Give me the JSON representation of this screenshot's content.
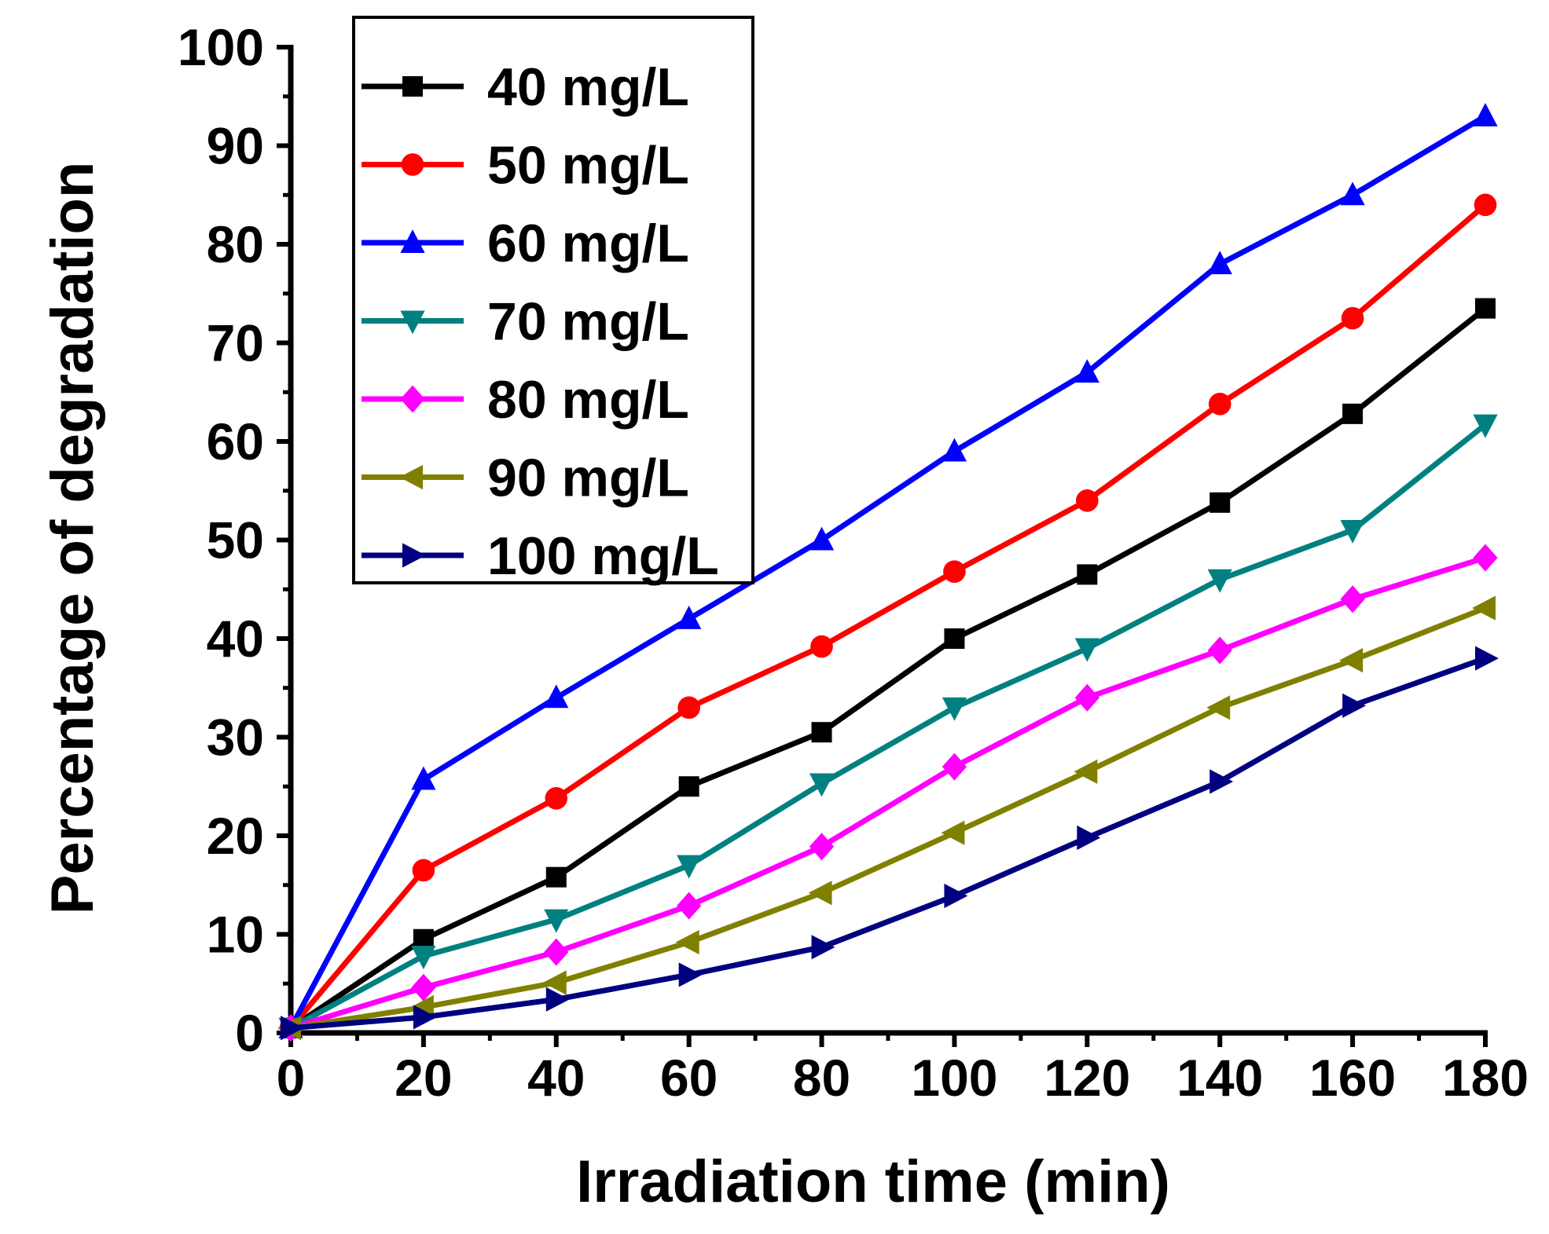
{
  "chart_data": {
    "type": "line",
    "title": "",
    "xlabel": "Irradiation time (min)",
    "ylabel": "Percentage of degradation",
    "xlim": [
      0,
      180
    ],
    "ylim": [
      0,
      100
    ],
    "x_ticks": [
      0,
      20,
      40,
      60,
      80,
      100,
      120,
      140,
      160,
      180
    ],
    "y_ticks": [
      0,
      10,
      20,
      30,
      40,
      50,
      60,
      70,
      80,
      90,
      100
    ],
    "x": [
      0,
      20,
      40,
      60,
      80,
      100,
      120,
      140,
      160,
      180
    ],
    "legend_position": "top-left",
    "grid": false,
    "series": [
      {
        "name": "40 mg/L",
        "color": "#000000",
        "marker": "square",
        "values": [
          0.5,
          9.5,
          15.8,
          25.0,
          30.5,
          40.0,
          46.5,
          53.8,
          62.8,
          73.5
        ]
      },
      {
        "name": "50 mg/L",
        "color": "#ff0000",
        "marker": "circle",
        "values": [
          0.5,
          16.5,
          23.8,
          33.0,
          39.2,
          46.8,
          54.0,
          63.8,
          72.5,
          84.0
        ]
      },
      {
        "name": "60 mg/L",
        "color": "#0000ff",
        "marker": "triangle-up",
        "values": [
          0.5,
          25.7,
          34.0,
          42.0,
          50.0,
          59.0,
          67.0,
          78.0,
          85.0,
          93.0
        ]
      },
      {
        "name": "70 mg/L",
        "color": "#008080",
        "marker": "triangle-down",
        "values": [
          0.5,
          7.8,
          11.5,
          17.0,
          25.3,
          33.0,
          39.0,
          46.0,
          51.0,
          61.7
        ]
      },
      {
        "name": "80 mg/L",
        "color": "#ff00ff",
        "marker": "diamond",
        "values": [
          0.5,
          4.6,
          8.2,
          12.9,
          18.9,
          27.0,
          34.0,
          38.8,
          44.0,
          48.2
        ]
      },
      {
        "name": "90 mg/L",
        "color": "#808000",
        "marker": "triangle-left",
        "values": [
          0.5,
          2.6,
          5.1,
          9.2,
          14.2,
          20.3,
          26.5,
          33.0,
          37.8,
          43.1
        ]
      },
      {
        "name": "100 mg/L",
        "color": "#000080",
        "marker": "triangle-right",
        "values": [
          0.5,
          1.6,
          3.4,
          5.9,
          8.7,
          13.9,
          19.8,
          25.5,
          33.2,
          38.0
        ]
      }
    ]
  }
}
